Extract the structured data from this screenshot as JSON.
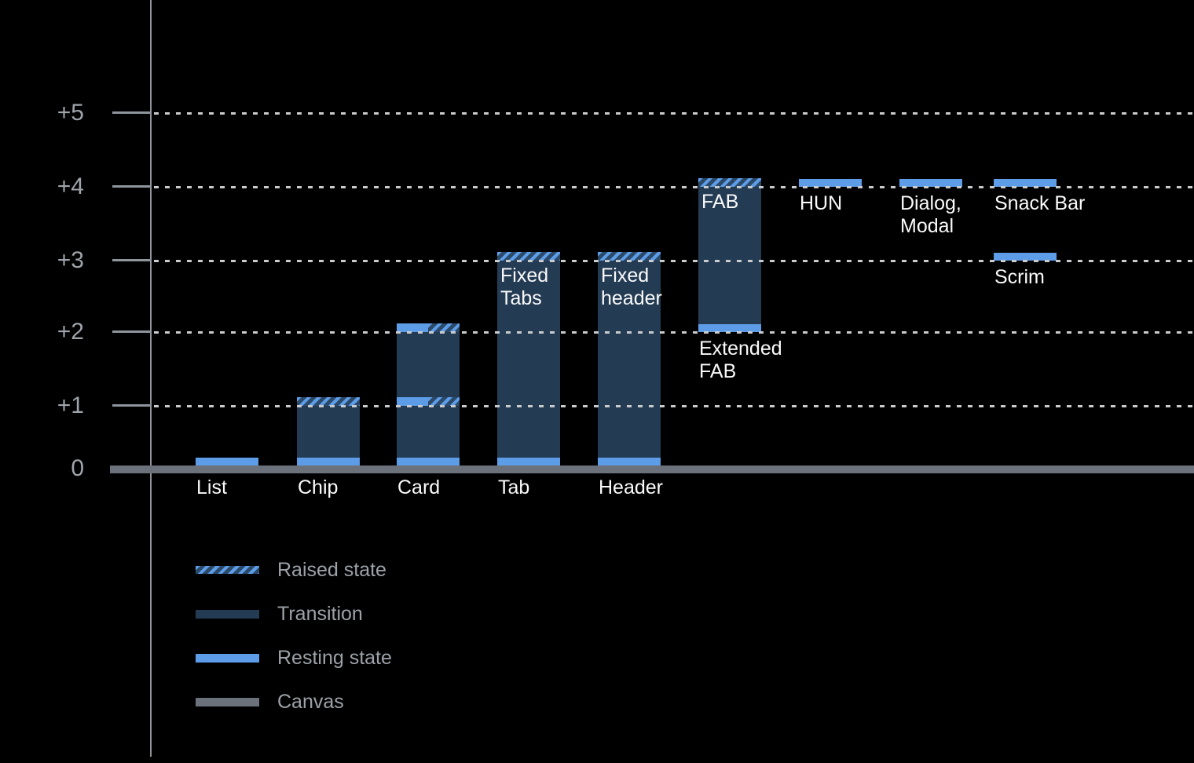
{
  "background": "#000000",
  "colors": {
    "resting_blue": "#5D9DE8",
    "transition_navy": "#243B54",
    "hatch_background": "#2B4969",
    "canvas_gray": "#6B727B",
    "axis_gray": "#8E959C",
    "grid_dot_gray": "#C9CBCD",
    "muted_text": "#9EA4AA",
    "label_white": "#FAFAFA"
  },
  "y_axis": {
    "tick_labels": [
      "+5",
      "+4",
      "+3",
      "+2",
      "+1",
      "0"
    ],
    "levels": [
      5,
      4,
      3,
      2,
      1,
      0
    ]
  },
  "legend": {
    "items": [
      {
        "id": "raised",
        "swatch": "raised",
        "label": "Raised state"
      },
      {
        "id": "transition",
        "swatch": "transition",
        "label": "Transition"
      },
      {
        "id": "resting",
        "swatch": "resting",
        "label": "Resting state"
      },
      {
        "id": "canvas",
        "swatch": "canvas",
        "label": "Canvas"
      }
    ]
  },
  "chart_data": {
    "type": "bar",
    "title": "",
    "xlabel": "",
    "ylabel": "",
    "ylim": [
      0,
      5
    ],
    "y_ticks": [
      "0",
      "+1",
      "+2",
      "+3",
      "+4",
      "+5"
    ],
    "grid": "dotted-horizontal",
    "legend_position": "bottom-left",
    "components": [
      {
        "id": "list",
        "name": "List",
        "resting_levels": [
          0
        ],
        "raised_levels": [],
        "transition_range": null,
        "labels": {
          "baseline": "List"
        }
      },
      {
        "id": "chip",
        "name": "Chip",
        "resting_levels": [
          0
        ],
        "raised_levels": [
          1
        ],
        "transition_range": [
          0,
          1
        ],
        "labels": {
          "baseline": "Chip"
        }
      },
      {
        "id": "card",
        "name": "Card",
        "resting_levels": [
          0,
          1,
          2
        ],
        "raised_levels": [
          1,
          2
        ],
        "transition_range": [
          0,
          2
        ],
        "labels": {
          "baseline": "Card"
        }
      },
      {
        "id": "tab",
        "name": "Tab",
        "resting_levels": [
          0
        ],
        "raised_levels": [
          3
        ],
        "transition_range": [
          0,
          3
        ],
        "labels": {
          "baseline": "Tab",
          "inner": [
            "Fixed",
            "Tabs"
          ]
        }
      },
      {
        "id": "header",
        "name": "Header",
        "resting_levels": [
          0
        ],
        "raised_levels": [
          3
        ],
        "transition_range": [
          0,
          3
        ],
        "labels": {
          "baseline": "Header",
          "inner": [
            "Fixed",
            "header"
          ]
        }
      },
      {
        "id": "fab",
        "name": "FAB / Extended FAB",
        "resting_levels": [
          2
        ],
        "raised_levels": [
          4
        ],
        "transition_range": [
          2,
          4
        ],
        "labels": {
          "inner": [
            "FAB"
          ],
          "below": [
            "Extended",
            "FAB"
          ],
          "below_level": 2
        }
      },
      {
        "id": "hun",
        "name": "HUN",
        "resting_levels": [
          4
        ],
        "raised_levels": [],
        "transition_range": null,
        "labels": {
          "below": [
            "HUN"
          ],
          "below_level": 4
        }
      },
      {
        "id": "dialog-modal",
        "name": "Dialog, Modal",
        "resting_levels": [
          4
        ],
        "raised_levels": [],
        "transition_range": null,
        "labels": {
          "below": [
            "Dialog,",
            "Modal"
          ],
          "below_level": 4
        }
      },
      {
        "id": "snack-bar",
        "name": "Snack Bar",
        "resting_levels": [
          4
        ],
        "raised_levels": [],
        "transition_range": null,
        "labels": {
          "below": [
            "Snack Bar"
          ],
          "below_level": 4
        }
      },
      {
        "id": "scrim",
        "name": "Scrim",
        "resting_levels": [
          3
        ],
        "raised_levels": [],
        "transition_range": null,
        "labels": {
          "below": [
            "Scrim"
          ],
          "below_level": 3
        }
      }
    ]
  }
}
